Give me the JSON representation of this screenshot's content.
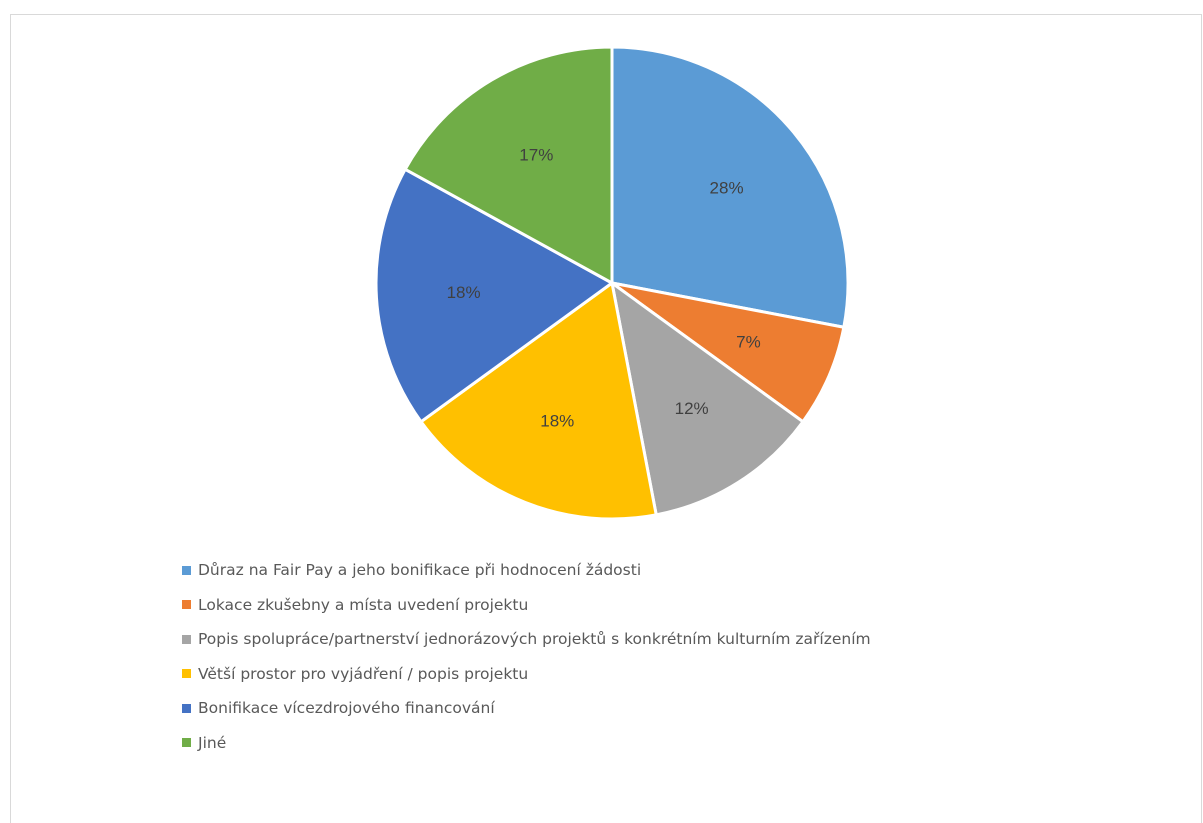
{
  "chart_data": {
    "type": "pie",
    "title": "",
    "categories": [
      "Důraz na Fair Pay a jeho bonifikace při hodnocení žádosti",
      "Lokace zkušebny a místa uvedení projektu",
      "Popis spolupráce/partnerství jednorázových projektů s konkrétním kulturním zařízením",
      "Větší prostor pro vyjádření / popis projektu",
      "Bonifikace vícezdrojového financování",
      "Jiné"
    ],
    "values": [
      28,
      7,
      12,
      18,
      18,
      17
    ],
    "labels": [
      "28%",
      "7%",
      "12%",
      "18%",
      "18%",
      "17%"
    ],
    "colors": [
      "#5B9BD5",
      "#ED7D31",
      "#A5A5A5",
      "#FFC000",
      "#4472C4",
      "#70AD47"
    ],
    "legend_position": "bottom",
    "start_angle": "12 o'clock",
    "direction": "clockwise"
  }
}
